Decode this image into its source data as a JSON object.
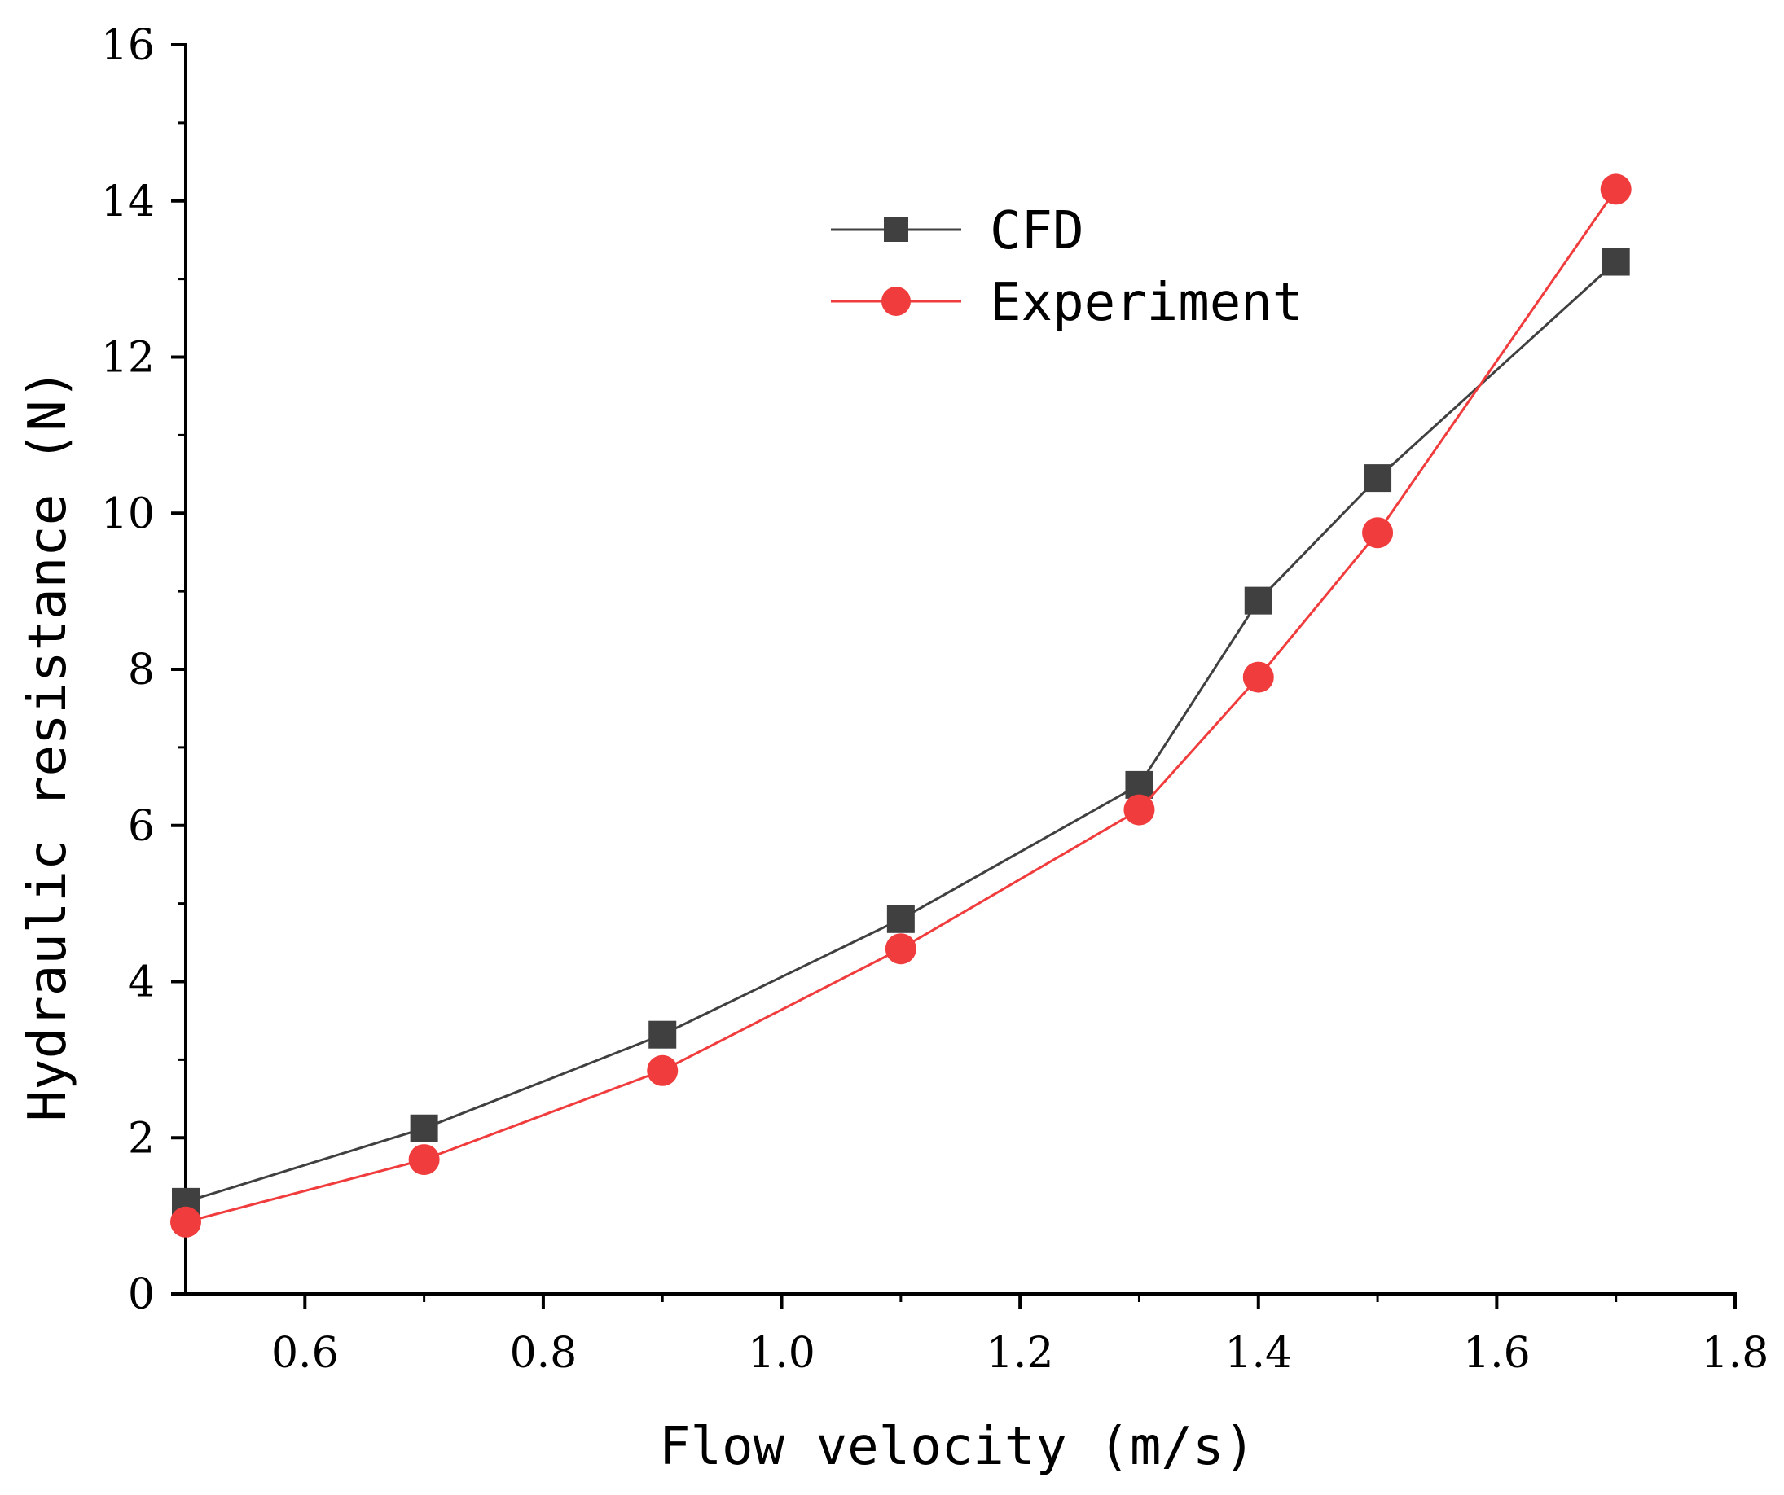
{
  "chart_data": {
    "type": "line",
    "title": "",
    "xlabel": "Flow velocity (m/s)",
    "ylabel": "Hydraulic resistance (N)",
    "xlim": [
      0.5,
      1.8
    ],
    "ylim": [
      0,
      16
    ],
    "xticks": [
      "0.6",
      "0.8",
      "1.0",
      "1.2",
      "1.4",
      "1.6",
      "1.8"
    ],
    "yticks": [
      "0",
      "2",
      "4",
      "6",
      "8",
      "10",
      "12",
      "14",
      "16"
    ],
    "grid": false,
    "legend_position": "top-center",
    "x": [
      0.5,
      0.7,
      0.9,
      1.1,
      1.3,
      1.4,
      1.5,
      1.7
    ],
    "series": [
      {
        "name": "CFD",
        "marker": "square",
        "color": "#404040",
        "values": [
          1.18,
          2.12,
          3.32,
          4.8,
          6.52,
          8.88,
          10.45,
          13.22
        ]
      },
      {
        "name": "Experiment",
        "marker": "circle",
        "color": "#f03c3c",
        "values": [
          0.92,
          1.72,
          2.86,
          4.42,
          6.2,
          7.9,
          9.75,
          14.15
        ]
      }
    ]
  }
}
